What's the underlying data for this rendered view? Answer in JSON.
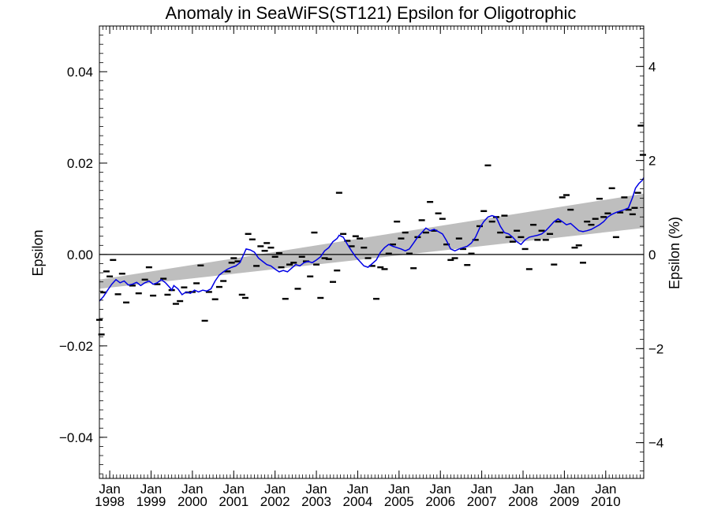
{
  "chart_data": {
    "type": "scatter",
    "title": "Anomaly in SeaWiFS(ST121) Epsilon for Oligotrophic",
    "ylabel": "Epsilon",
    "y2label": "Epsilon (%)",
    "xlim": [
      1997.75,
      2010.92
    ],
    "ylim": [
      -0.049,
      0.05
    ],
    "y2lim": [
      -4.76,
      4.86
    ],
    "y_ticks": [
      {
        "value": 0.04,
        "label": "0.04"
      },
      {
        "value": 0.02,
        "label": "0.02"
      },
      {
        "value": 0.0,
        "label": "0.00"
      },
      {
        "value": -0.02,
        "label": "−0.02"
      },
      {
        "value": -0.04,
        "label": "−0.04"
      }
    ],
    "y2_ticks": [
      {
        "value": 4,
        "label": "4"
      },
      {
        "value": 2,
        "label": "2"
      },
      {
        "value": 0,
        "label": "0"
      },
      {
        "value": -2,
        "label": "−2"
      },
      {
        "value": -4,
        "label": "−4"
      }
    ],
    "x_ticks": [
      {
        "value": 1998.0,
        "month": "Jan",
        "year": "1998"
      },
      {
        "value": 1999.0,
        "month": "Jan",
        "year": "1999"
      },
      {
        "value": 2000.0,
        "month": "Jan",
        "year": "2000"
      },
      {
        "value": 2001.0,
        "month": "Jan",
        "year": "2001"
      },
      {
        "value": 2002.0,
        "month": "Jan",
        "year": "2002"
      },
      {
        "value": 2003.0,
        "month": "Jan",
        "year": "2003"
      },
      {
        "value": 2004.0,
        "month": "Jan",
        "year": "2004"
      },
      {
        "value": 2005.0,
        "month": "Jan",
        "year": "2005"
      },
      {
        "value": 2006.0,
        "month": "Jan",
        "year": "2006"
      },
      {
        "value": 2007.0,
        "month": "Jan",
        "year": "2007"
      },
      {
        "value": 2008.0,
        "month": "Jan",
        "year": "2008"
      },
      {
        "value": 2009.0,
        "month": "Jan",
        "year": "2009"
      },
      {
        "value": 2010.0,
        "month": "Jan",
        "year": "2010"
      }
    ],
    "zero_line": 0.0,
    "trend_band": {
      "x": [
        1997.75,
        2010.92
      ],
      "lower": [
        -0.0075,
        0.0058
      ],
      "upper": [
        -0.0055,
        0.0133
      ],
      "color": "#bebebe"
    },
    "points": {
      "color": "#000000",
      "marker": "dash",
      "data": [
        [
          1997.75,
          -0.0143
        ],
        [
          1997.8,
          -0.0175
        ],
        [
          1997.85,
          -0.0083
        ],
        [
          1997.92,
          -0.0037
        ],
        [
          1998.0,
          -0.0048
        ],
        [
          1998.08,
          -0.0012
        ],
        [
          1998.2,
          -0.0087
        ],
        [
          1998.3,
          -0.0042
        ],
        [
          1998.4,
          -0.0105
        ],
        [
          1998.55,
          -0.0068
        ],
        [
          1998.7,
          -0.0085
        ],
        [
          1998.85,
          -0.0055
        ],
        [
          1998.95,
          -0.0028
        ],
        [
          1999.05,
          -0.009
        ],
        [
          1999.15,
          -0.0065
        ],
        [
          1999.3,
          -0.0053
        ],
        [
          1999.4,
          -0.0088
        ],
        [
          1999.5,
          -0.0078
        ],
        [
          1999.6,
          -0.0108
        ],
        [
          1999.7,
          -0.0102
        ],
        [
          1999.8,
          -0.0072
        ],
        [
          1999.9,
          -0.0083
        ],
        [
          2000.0,
          -0.0082
        ],
        [
          2000.1,
          -0.0063
        ],
        [
          2000.2,
          -0.0024
        ],
        [
          2000.3,
          -0.0145
        ],
        [
          2000.4,
          -0.0082
        ],
        [
          2000.55,
          -0.0098
        ],
        [
          2000.65,
          -0.0071
        ],
        [
          2000.75,
          -0.0058
        ],
        [
          2000.85,
          -0.0037
        ],
        [
          2000.95,
          -0.0018
        ],
        [
          2001.0,
          -0.0008
        ],
        [
          2001.1,
          -0.0015
        ],
        [
          2001.2,
          -0.0088
        ],
        [
          2001.28,
          -0.0095
        ],
        [
          2001.35,
          0.0045
        ],
        [
          2001.45,
          0.0033
        ],
        [
          2001.55,
          -0.0025
        ],
        [
          2001.65,
          0.0018
        ],
        [
          2001.75,
          0.0008
        ],
        [
          2001.8,
          0.0025
        ],
        [
          2001.9,
          0.0015
        ],
        [
          2002.0,
          -0.0005
        ],
        [
          2002.1,
          0.0003
        ],
        [
          2002.15,
          -0.0028
        ],
        [
          2002.25,
          -0.0097
        ],
        [
          2002.35,
          -0.0022
        ],
        [
          2002.45,
          -0.0018
        ],
        [
          2002.55,
          -0.0075
        ],
        [
          2002.65,
          -0.0005
        ],
        [
          2002.75,
          -0.0015
        ],
        [
          2002.85,
          -0.0048
        ],
        [
          2002.95,
          0.0048
        ],
        [
          2003.0,
          -0.0022
        ],
        [
          2003.1,
          -0.0095
        ],
        [
          2003.2,
          -0.0008
        ],
        [
          2003.3,
          -0.001
        ],
        [
          2003.4,
          -0.006
        ],
        [
          2003.5,
          -0.0035
        ],
        [
          2003.55,
          0.0135
        ],
        [
          2003.65,
          0.0045
        ],
        [
          2003.75,
          0.003
        ],
        [
          2003.85,
          0.0018
        ],
        [
          2003.95,
          0.004
        ],
        [
          2004.05,
          0.0035
        ],
        [
          2004.15,
          0.0015
        ],
        [
          2004.25,
          -0.0008
        ],
        [
          2004.35,
          -0.0025
        ],
        [
          2004.45,
          -0.0097
        ],
        [
          2004.55,
          -0.0028
        ],
        [
          2004.65,
          -0.0032
        ],
        [
          2004.75,
          0.0002
        ],
        [
          2004.85,
          0.0022
        ],
        [
          2004.95,
          0.0072
        ],
        [
          2005.05,
          0.0035
        ],
        [
          2005.15,
          0.0048
        ],
        [
          2005.25,
          0.0002
        ],
        [
          2005.35,
          -0.003
        ],
        [
          2005.45,
          0.0038
        ],
        [
          2005.55,
          0.0075
        ],
        [
          2005.65,
          0.0048
        ],
        [
          2005.75,
          0.0115
        ],
        [
          2005.85,
          0.0052
        ],
        [
          2005.95,
          0.009
        ],
        [
          2006.05,
          0.0078
        ],
        [
          2006.15,
          0.0022
        ],
        [
          2006.25,
          -0.0012
        ],
        [
          2006.35,
          -0.0008
        ],
        [
          2006.45,
          0.0035
        ],
        [
          2006.55,
          0.0012
        ],
        [
          2006.65,
          -0.0023
        ],
        [
          2006.75,
          0.0002
        ],
        [
          2006.85,
          0.0032
        ],
        [
          2006.95,
          0.0062
        ],
        [
          2007.05,
          0.0095
        ],
        [
          2007.15,
          0.0195
        ],
        [
          2007.25,
          0.0072
        ],
        [
          2007.35,
          0.0082
        ],
        [
          2007.45,
          0.0048
        ],
        [
          2007.55,
          0.0085
        ],
        [
          2007.65,
          0.0038
        ],
        [
          2007.75,
          0.0028
        ],
        [
          2007.85,
          0.0052
        ],
        [
          2007.95,
          0.0038
        ],
        [
          2008.05,
          0.0012
        ],
        [
          2008.15,
          -0.0032
        ],
        [
          2008.25,
          0.0065
        ],
        [
          2008.35,
          0.0032
        ],
        [
          2008.45,
          0.0052
        ],
        [
          2008.55,
          0.0032
        ],
        [
          2008.65,
          0.0045
        ],
        [
          2008.75,
          -0.0022
        ],
        [
          2008.85,
          0.0072
        ],
        [
          2008.95,
          0.0125
        ],
        [
          2009.05,
          0.013
        ],
        [
          2009.15,
          0.0098
        ],
        [
          2009.25,
          0.0015
        ],
        [
          2009.35,
          0.002
        ],
        [
          2009.45,
          -0.0018
        ],
        [
          2009.55,
          0.0072
        ],
        [
          2009.65,
          0.0065
        ],
        [
          2009.75,
          0.0078
        ],
        [
          2009.85,
          0.0122
        ],
        [
          2009.95,
          0.0082
        ],
        [
          2010.05,
          0.009
        ],
        [
          2010.15,
          0.0145
        ],
        [
          2010.25,
          0.0038
        ],
        [
          2010.35,
          0.0092
        ],
        [
          2010.45,
          0.0125
        ],
        [
          2010.55,
          0.0098
        ],
        [
          2010.65,
          0.0088
        ],
        [
          2010.7,
          0.0102
        ],
        [
          2010.78,
          0.0135
        ],
        [
          2010.85,
          0.0282
        ],
        [
          2010.9,
          0.0218
        ]
      ]
    },
    "smoothed": {
      "color": "#0000e6",
      "data": [
        [
          1997.75,
          -0.0102
        ],
        [
          1997.85,
          -0.0092
        ],
        [
          1997.95,
          -0.0078
        ],
        [
          1998.05,
          -0.0065
        ],
        [
          1998.15,
          -0.0055
        ],
        [
          1998.25,
          -0.0062
        ],
        [
          1998.35,
          -0.0058
        ],
        [
          1998.45,
          -0.0067
        ],
        [
          1998.55,
          -0.0065
        ],
        [
          1998.65,
          -0.0061
        ],
        [
          1998.75,
          -0.0068
        ],
        [
          1998.85,
          -0.0062
        ],
        [
          1998.95,
          -0.0058
        ],
        [
          1999.05,
          -0.0065
        ],
        [
          1999.15,
          -0.0062
        ],
        [
          1999.25,
          -0.0055
        ],
        [
          1999.35,
          -0.0062
        ],
        [
          1999.45,
          -0.0072
        ],
        [
          1999.5,
          -0.0078
        ],
        [
          1999.55,
          -0.0068
        ],
        [
          1999.65,
          -0.0075
        ],
        [
          1999.75,
          -0.0088
        ],
        [
          1999.85,
          -0.0082
        ],
        [
          1999.95,
          -0.0085
        ],
        [
          2000.05,
          -0.0078
        ],
        [
          2000.15,
          -0.0082
        ],
        [
          2000.25,
          -0.0078
        ],
        [
          2000.35,
          -0.008
        ],
        [
          2000.45,
          -0.0075
        ],
        [
          2000.55,
          -0.0058
        ],
        [
          2000.65,
          -0.0045
        ],
        [
          2000.75,
          -0.0038
        ],
        [
          2000.85,
          -0.0032
        ],
        [
          2000.95,
          -0.0028
        ],
        [
          2001.05,
          -0.0025
        ],
        [
          2001.15,
          -0.0018
        ],
        [
          2001.25,
          0.0002
        ],
        [
          2001.3,
          0.0012
        ],
        [
          2001.4,
          0.001
        ],
        [
          2001.5,
          0.0005
        ],
        [
          2001.6,
          -0.0008
        ],
        [
          2001.7,
          -0.0015
        ],
        [
          2001.8,
          -0.0022
        ],
        [
          2001.9,
          -0.0025
        ],
        [
          2002.0,
          -0.0032
        ],
        [
          2002.1,
          -0.0038
        ],
        [
          2002.2,
          -0.0035
        ],
        [
          2002.3,
          -0.0038
        ],
        [
          2002.4,
          -0.003
        ],
        [
          2002.5,
          -0.0022
        ],
        [
          2002.6,
          -0.0025
        ],
        [
          2002.7,
          -0.0018
        ],
        [
          2002.8,
          -0.0015
        ],
        [
          2002.9,
          -0.0018
        ],
        [
          2003.0,
          -0.0012
        ],
        [
          2003.1,
          -0.0005
        ],
        [
          2003.2,
          0.0008
        ],
        [
          2003.3,
          0.0015
        ],
        [
          2003.4,
          0.0028
        ],
        [
          2003.5,
          0.0035
        ],
        [
          2003.55,
          0.0042
        ],
        [
          2003.65,
          0.0038
        ],
        [
          2003.75,
          0.0022
        ],
        [
          2003.85,
          0.0008
        ],
        [
          2003.95,
          -0.0005
        ],
        [
          2004.05,
          -0.0015
        ],
        [
          2004.15,
          -0.0025
        ],
        [
          2004.25,
          -0.0028
        ],
        [
          2004.35,
          -0.002
        ],
        [
          2004.45,
          -0.0012
        ],
        [
          2004.55,
          0.0005
        ],
        [
          2004.65,
          0.0015
        ],
        [
          2004.75,
          0.0022
        ],
        [
          2004.85,
          0.0018
        ],
        [
          2004.95,
          0.0015
        ],
        [
          2005.05,
          0.0012
        ],
        [
          2005.15,
          0.0008
        ],
        [
          2005.25,
          0.0012
        ],
        [
          2005.35,
          0.0025
        ],
        [
          2005.45,
          0.0038
        ],
        [
          2005.55,
          0.0048
        ],
        [
          2005.65,
          0.0058
        ],
        [
          2005.75,
          0.0052
        ],
        [
          2005.85,
          0.0055
        ],
        [
          2005.95,
          0.005
        ],
        [
          2006.05,
          0.0045
        ],
        [
          2006.15,
          0.003
        ],
        [
          2006.25,
          0.0012
        ],
        [
          2006.35,
          0.0008
        ],
        [
          2006.45,
          0.0012
        ],
        [
          2006.55,
          0.0015
        ],
        [
          2006.65,
          0.0018
        ],
        [
          2006.75,
          0.0025
        ],
        [
          2006.85,
          0.0038
        ],
        [
          2006.95,
          0.0058
        ],
        [
          2007.05,
          0.0072
        ],
        [
          2007.15,
          0.0082
        ],
        [
          2007.25,
          0.0085
        ],
        [
          2007.35,
          0.0082
        ],
        [
          2007.45,
          0.0062
        ],
        [
          2007.55,
          0.0048
        ],
        [
          2007.65,
          0.0045
        ],
        [
          2007.75,
          0.0038
        ],
        [
          2007.85,
          0.0028
        ],
        [
          2007.95,
          0.0022
        ],
        [
          2008.05,
          0.0032
        ],
        [
          2008.15,
          0.0038
        ],
        [
          2008.25,
          0.004
        ],
        [
          2008.35,
          0.0042
        ],
        [
          2008.45,
          0.0045
        ],
        [
          2008.55,
          0.0052
        ],
        [
          2008.65,
          0.0062
        ],
        [
          2008.75,
          0.0072
        ],
        [
          2008.85,
          0.0078
        ],
        [
          2008.95,
          0.0072
        ],
        [
          2009.05,
          0.0065
        ],
        [
          2009.15,
          0.0068
        ],
        [
          2009.25,
          0.006
        ],
        [
          2009.35,
          0.0052
        ],
        [
          2009.45,
          0.005
        ],
        [
          2009.55,
          0.0052
        ],
        [
          2009.65,
          0.0055
        ],
        [
          2009.75,
          0.006
        ],
        [
          2009.85,
          0.0065
        ],
        [
          2009.95,
          0.0072
        ],
        [
          2010.05,
          0.0082
        ],
        [
          2010.15,
          0.0088
        ],
        [
          2010.25,
          0.0092
        ],
        [
          2010.35,
          0.0095
        ],
        [
          2010.45,
          0.0098
        ],
        [
          2010.55,
          0.0102
        ],
        [
          2010.65,
          0.0125
        ],
        [
          2010.72,
          0.0145
        ],
        [
          2010.8,
          0.0155
        ],
        [
          2010.88,
          0.0162
        ],
        [
          2010.92,
          0.0168
        ]
      ]
    },
    "grid": false,
    "legend": "none"
  }
}
